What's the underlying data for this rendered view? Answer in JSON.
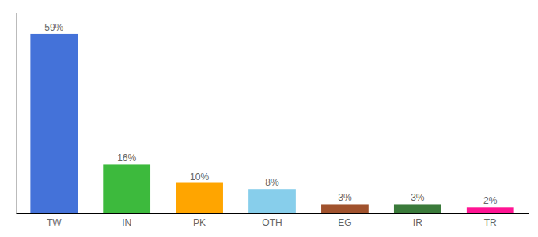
{
  "chart_data": {
    "type": "bar",
    "categories": [
      "TW",
      "IN",
      "PK",
      "OTH",
      "EG",
      "IR",
      "TR"
    ],
    "values": [
      59,
      16,
      10,
      8,
      3,
      3,
      2
    ],
    "value_labels": [
      "59%",
      "16%",
      "10%",
      "8%",
      "3%",
      "3%",
      "2%"
    ],
    "colors": [
      "#4472d9",
      "#3dba3d",
      "#ffa500",
      "#87ceeb",
      "#a0522d",
      "#3a7a3a",
      "#ff1493"
    ],
    "ylim": [
      0,
      66
    ],
    "data_labels": true,
    "tick_labels": "x",
    "grid": false
  }
}
